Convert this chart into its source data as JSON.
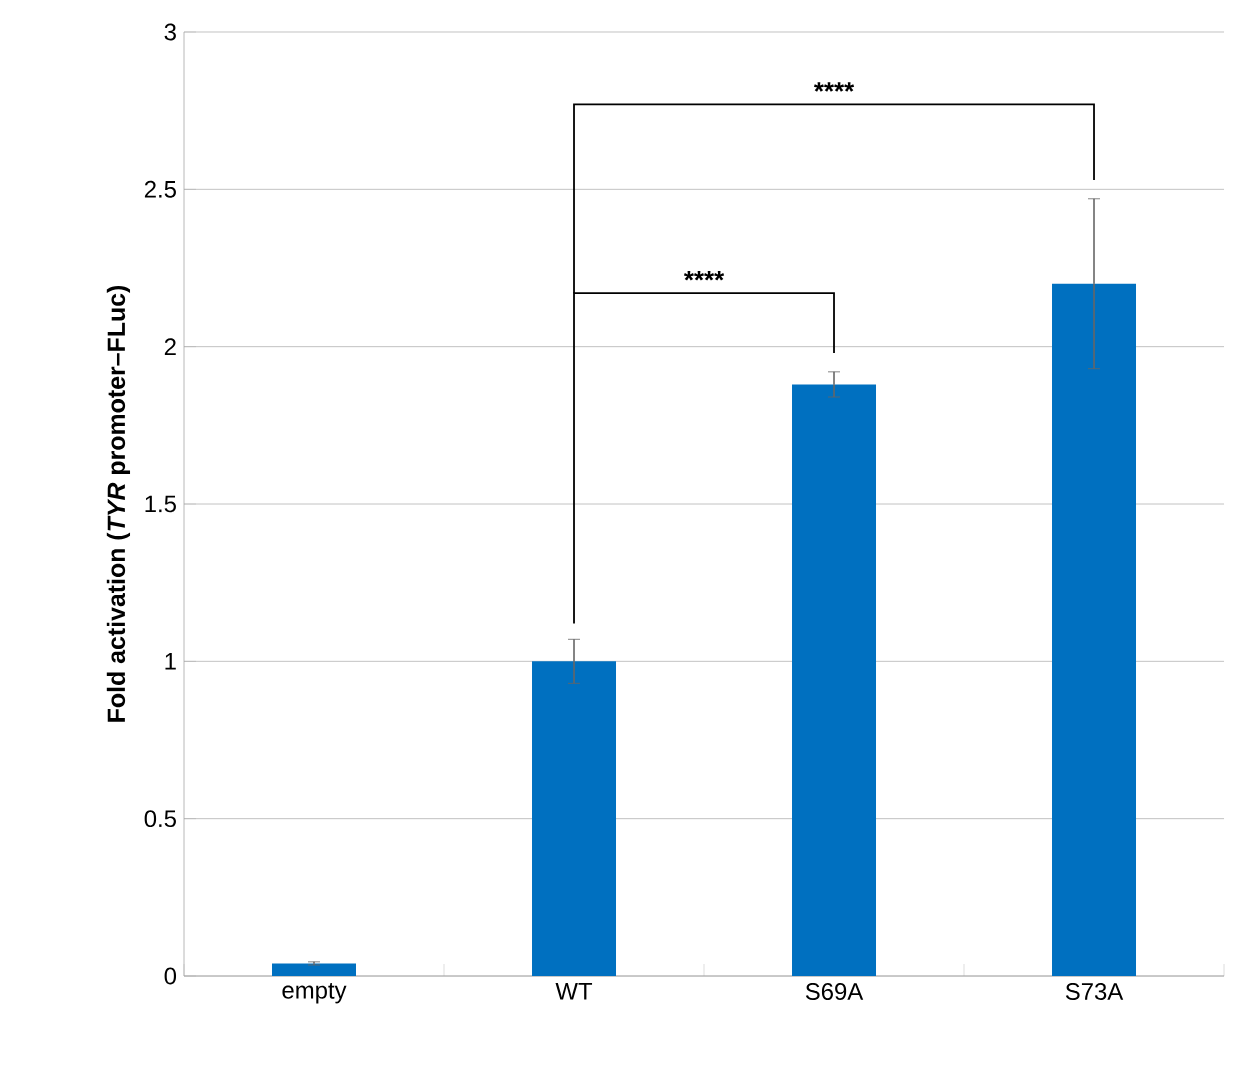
{
  "chart_data": {
    "type": "bar",
    "ylabel": "**Fold activation (*TYR* promoter–FLuc)**",
    "categories": [
      "empty",
      "WT",
      "S69A",
      "S73A"
    ],
    "values": [
      0.04,
      1.0,
      1.88,
      2.2
    ],
    "errors": [
      0.005,
      0.07,
      0.04,
      0.27
    ],
    "color": "#0070c0",
    "ylim": [
      0,
      3
    ],
    "yticks": [
      0,
      0.5,
      1,
      1.5,
      2,
      2.5,
      3
    ],
    "grid": "y",
    "annotations": [
      "****",
      "****"
    ]
  }
}
